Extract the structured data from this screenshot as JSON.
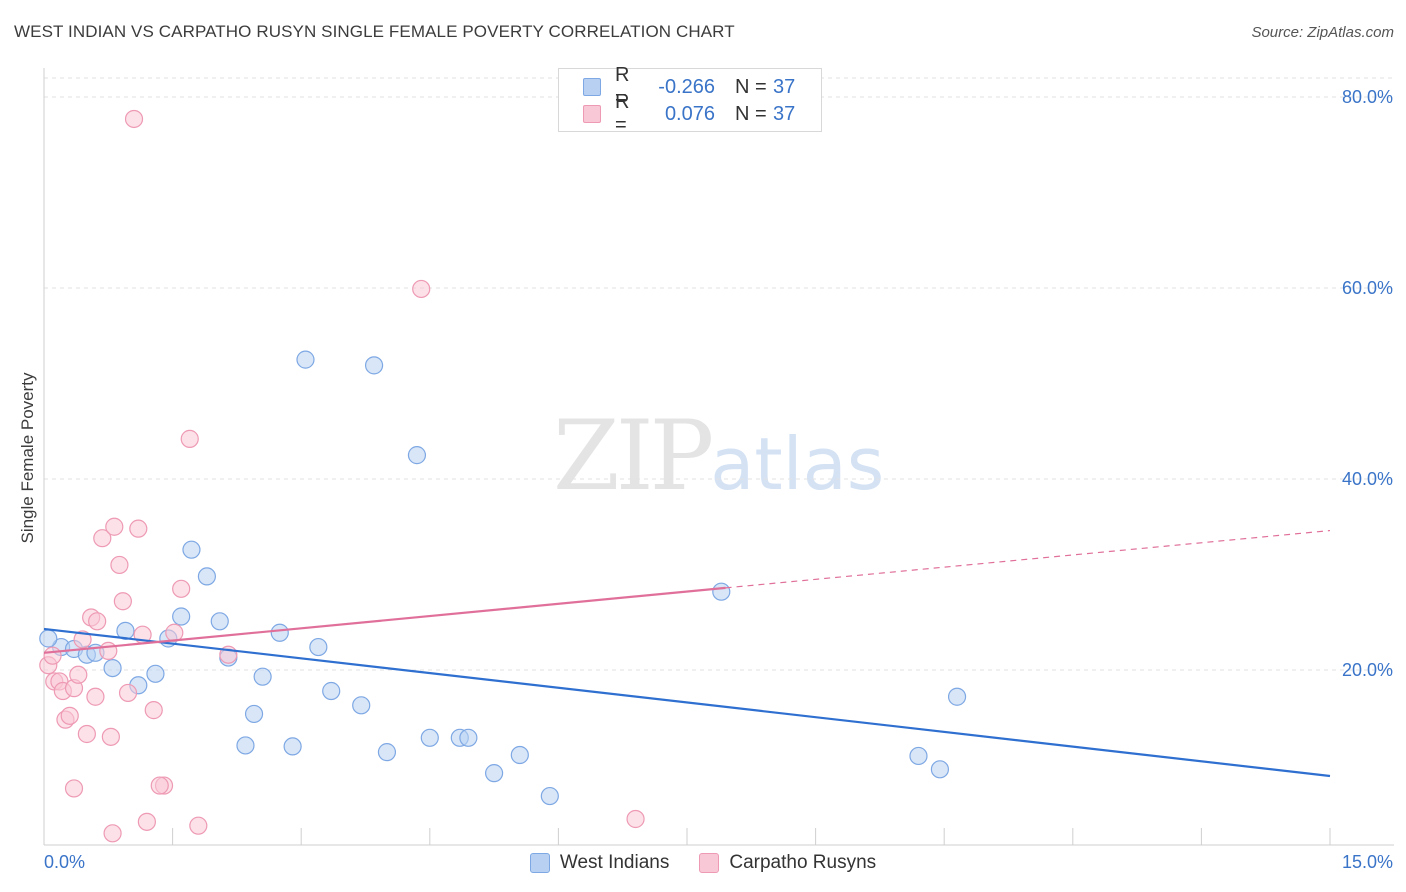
{
  "header": {
    "title": "WEST INDIAN VS CARPATHO RUSYN SINGLE FEMALE POVERTY CORRELATION CHART",
    "source": "Source: ZipAtlas.com"
  },
  "watermark": {
    "zip": "ZIP",
    "atlas": "atlas"
  },
  "legend": {
    "rows": [
      {
        "r_label": "R =",
        "r_value": "-0.266",
        "n_label": "N =",
        "n_value": "37",
        "fill": "#b8d1f3",
        "stroke": "#7ea8e4"
      },
      {
        "r_label": "R =",
        "r_value": "0.076",
        "n_label": "N =",
        "n_value": "37",
        "fill": "#f9c8d6",
        "stroke": "#ee9ab4"
      }
    ]
  },
  "bottom_legend": [
    {
      "label": "West Indians",
      "fill": "#b8d1f3",
      "stroke": "#7ea8e4"
    },
    {
      "label": "Carpatho Rusyns",
      "fill": "#f9c8d6",
      "stroke": "#ee9ab4"
    }
  ],
  "chart_data": {
    "type": "scatter",
    "title": "WEST INDIAN VS CARPATHO RUSYN SINGLE FEMALE POVERTY CORRELATION CHART",
    "xlabel": "",
    "ylabel": "Single Female Poverty",
    "xlim": [
      0,
      15
    ],
    "ylim": [
      0,
      80
    ],
    "x_tick_labels": [
      "0.0%",
      "15.0%"
    ],
    "y_ticks": [
      20,
      40,
      60,
      80
    ],
    "y_tick_labels": [
      "20.0%",
      "40.0%",
      "60.0%",
      "80.0%"
    ],
    "grid": true,
    "legend_placement": "top-center",
    "series": [
      {
        "name": "West Indians",
        "color": "#7ea8e4",
        "fill": "#b8d1f3",
        "trend_color": "#2e6fd0",
        "trend": {
          "x": [
            0,
            15
          ],
          "y": [
            24.3,
            8.9
          ]
        },
        "points": [
          [
            0.2,
            22.4
          ],
          [
            0.35,
            22.2
          ],
          [
            0.5,
            21.6
          ],
          [
            0.6,
            21.8
          ],
          [
            0.8,
            20.2
          ],
          [
            0.95,
            24.1
          ],
          [
            1.1,
            18.4
          ],
          [
            1.3,
            19.6
          ],
          [
            1.45,
            23.3
          ],
          [
            1.6,
            25.6
          ],
          [
            1.72,
            32.6
          ],
          [
            1.9,
            29.8
          ],
          [
            2.05,
            25.1
          ],
          [
            2.15,
            21.3
          ],
          [
            2.55,
            19.3
          ],
          [
            2.45,
            15.4
          ],
          [
            2.35,
            12.1
          ],
          [
            2.75,
            23.9
          ],
          [
            2.9,
            12.0
          ],
          [
            3.05,
            52.5
          ],
          [
            3.2,
            22.4
          ],
          [
            3.35,
            17.8
          ],
          [
            3.7,
            16.3
          ],
          [
            3.85,
            51.9
          ],
          [
            4.0,
            11.4
          ],
          [
            4.35,
            42.5
          ],
          [
            4.5,
            12.9
          ],
          [
            4.85,
            12.9
          ],
          [
            4.95,
            12.9
          ],
          [
            5.25,
            9.2
          ],
          [
            5.55,
            11.1
          ],
          [
            5.9,
            6.8
          ],
          [
            7.9,
            28.2
          ],
          [
            10.2,
            11.0
          ],
          [
            10.45,
            9.6
          ],
          [
            10.65,
            17.2
          ],
          [
            0.05,
            23.3
          ]
        ]
      },
      {
        "name": "Carpatho Rusyns",
        "color": "#ee9ab4",
        "fill": "#f9c8d6",
        "trend_color": "#e0709a",
        "trend": {
          "x": [
            0,
            7.95
          ],
          "y": [
            21.8,
            28.6
          ]
        },
        "trend_extension": {
          "x": [
            7.95,
            15
          ],
          "y": [
            28.6,
            34.6
          ]
        },
        "points": [
          [
            0.05,
            20.5
          ],
          [
            0.1,
            21.5
          ],
          [
            0.12,
            18.8
          ],
          [
            0.18,
            18.8
          ],
          [
            0.22,
            17.8
          ],
          [
            0.25,
            14.8
          ],
          [
            0.3,
            15.2
          ],
          [
            0.35,
            18.1
          ],
          [
            0.4,
            19.5
          ],
          [
            0.45,
            23.2
          ],
          [
            0.5,
            13.3
          ],
          [
            0.55,
            25.5
          ],
          [
            0.6,
            17.2
          ],
          [
            0.62,
            25.1
          ],
          [
            0.68,
            33.8
          ],
          [
            0.75,
            22.0
          ],
          [
            0.78,
            13.0
          ],
          [
            0.82,
            35.0
          ],
          [
            0.88,
            31.0
          ],
          [
            0.92,
            27.2
          ],
          [
            0.98,
            17.6
          ],
          [
            1.05,
            77.7
          ],
          [
            1.1,
            34.8
          ],
          [
            1.15,
            23.7
          ],
          [
            1.2,
            4.1
          ],
          [
            1.28,
            15.8
          ],
          [
            1.4,
            7.9
          ],
          [
            1.52,
            23.9
          ],
          [
            1.6,
            28.5
          ],
          [
            1.7,
            44.2
          ],
          [
            1.8,
            3.7
          ],
          [
            2.15,
            21.6
          ],
          [
            4.4,
            59.9
          ],
          [
            6.9,
            4.4
          ],
          [
            0.35,
            7.6
          ],
          [
            0.8,
            2.9
          ],
          [
            1.35,
            7.9
          ]
        ]
      }
    ]
  }
}
